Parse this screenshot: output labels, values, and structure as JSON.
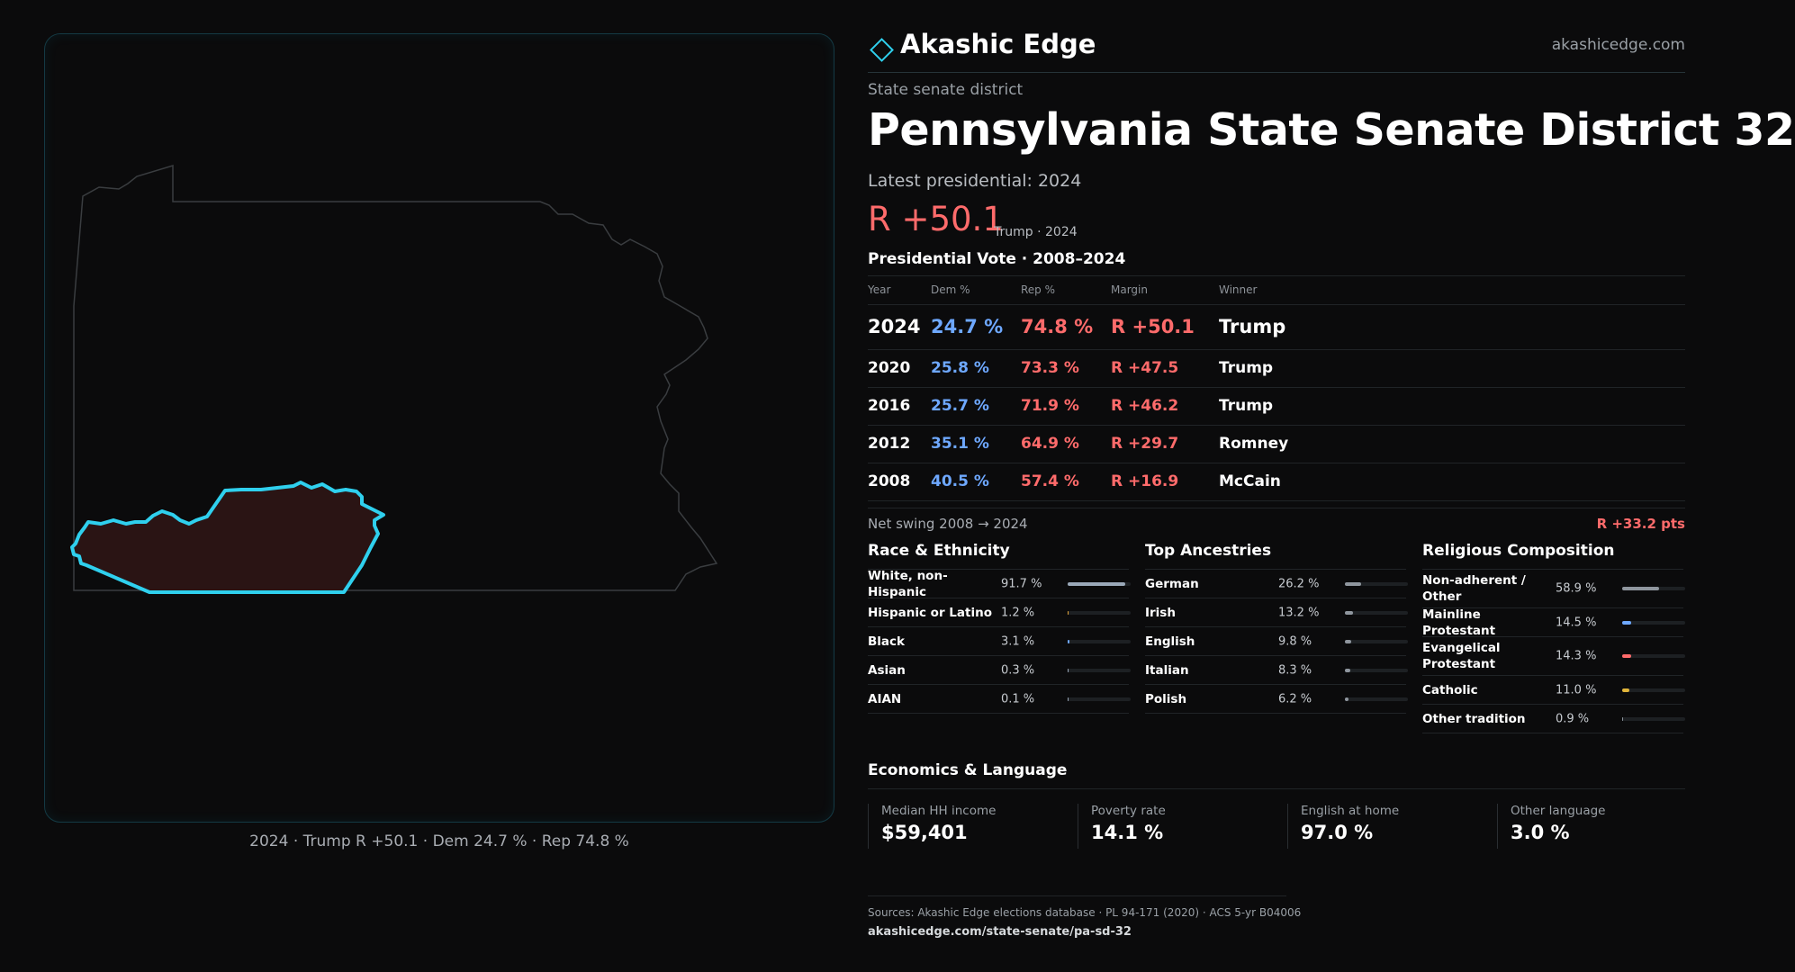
{
  "map": {
    "caption": "2024 · Trump R +50.1 · Dem 24.7 % · Rep 74.8 %",
    "state_stroke": "#3a3d40",
    "district_stroke": "#2fd0ee",
    "district_fill": "#2a1414"
  },
  "brand": {
    "name": "Akashic Edge",
    "url": "akashicedge.com",
    "accent": "#2fd0ee"
  },
  "header": {
    "kicker": "State senate district",
    "title": "Pennsylvania State Senate District 32",
    "latest_label": "Latest presidential: 2024",
    "margin": "R +50.1",
    "margin_sub": "Trump · 2024"
  },
  "vote_history": {
    "title": "Presidential Vote · 2008–2024",
    "columns": {
      "year": "Year",
      "dem": "Dem %",
      "rep": "Rep %",
      "margin": "Margin",
      "winner": "Winner"
    },
    "rows": [
      {
        "year": "2024",
        "dem": "24.7 %",
        "rep": "74.8 %",
        "margin": "R +50.1",
        "winner": "Trump"
      },
      {
        "year": "2020",
        "dem": "25.8 %",
        "rep": "73.3 %",
        "margin": "R +47.5",
        "winner": "Trump"
      },
      {
        "year": "2016",
        "dem": "25.7 %",
        "rep": "71.9 %",
        "margin": "R +46.2",
        "winner": "Trump"
      },
      {
        "year": "2012",
        "dem": "35.1 %",
        "rep": "64.9 %",
        "margin": "R +29.7",
        "winner": "Romney"
      },
      {
        "year": "2008",
        "dem": "40.5 %",
        "rep": "57.4 %",
        "margin": "R +16.9",
        "winner": "McCain"
      }
    ],
    "swing_label": "Net swing 2008 → 2024",
    "swing_value": "R +33.2 pts"
  },
  "race": {
    "title": "Race & Ethnicity",
    "items": [
      {
        "label": "White, non-Hispanic",
        "pct": "91.7 %",
        "value": 91.7,
        "color": "#9aa8b8"
      },
      {
        "label": "Hispanic or Latino",
        "pct": "1.2 %",
        "value": 1.2,
        "color": "#e0a43a"
      },
      {
        "label": "Black",
        "pct": "3.1 %",
        "value": 3.1,
        "color": "#6ea8ff"
      },
      {
        "label": "Asian",
        "pct": "0.3 %",
        "value": 0.3,
        "color": "#9aa8b8"
      },
      {
        "label": "AIAN",
        "pct": "0.1 %",
        "value": 0.1,
        "color": "#9aa8b8"
      }
    ]
  },
  "ancestry": {
    "title": "Top Ancestries",
    "items": [
      {
        "label": "German",
        "pct": "26.2 %",
        "value": 26.2,
        "color": "#8f969e"
      },
      {
        "label": "Irish",
        "pct": "13.2 %",
        "value": 13.2,
        "color": "#8f969e"
      },
      {
        "label": "English",
        "pct": "9.8 %",
        "value": 9.8,
        "color": "#8f969e"
      },
      {
        "label": "Italian",
        "pct": "8.3 %",
        "value": 8.3,
        "color": "#8f969e"
      },
      {
        "label": "Polish",
        "pct": "6.2 %",
        "value": 6.2,
        "color": "#8f969e"
      }
    ]
  },
  "religion": {
    "title": "Religious Composition",
    "items": [
      {
        "label": "Non-adherent / Other",
        "pct": "58.9 %",
        "value": 58.9,
        "color": "#8f969e"
      },
      {
        "label": "Mainline Protestant",
        "pct": "14.5 %",
        "value": 14.5,
        "color": "#6ea8ff"
      },
      {
        "label": "Evangelical Protestant",
        "pct": "14.3 %",
        "value": 14.3,
        "color": "#ff6b6b"
      },
      {
        "label": "Catholic",
        "pct": "11.0 %",
        "value": 11.0,
        "color": "#e0b43a"
      },
      {
        "label": "Other tradition",
        "pct": "0.9 %",
        "value": 0.9,
        "color": "#8f969e"
      }
    ]
  },
  "economics": {
    "title": "Economics & Language",
    "items": [
      {
        "label": "Median HH income",
        "value": "$59,401"
      },
      {
        "label": "Poverty rate",
        "value": "14.1 %"
      },
      {
        "label": "English at home",
        "value": "97.0 %"
      },
      {
        "label": "Other language",
        "value": "3.0 %"
      }
    ]
  },
  "footer": {
    "sources": "Sources: Akashic Edge elections database · PL 94-171 (2020) · ACS 5-yr B04006",
    "url": "akashicedge.com/state-senate/pa-sd-32"
  }
}
